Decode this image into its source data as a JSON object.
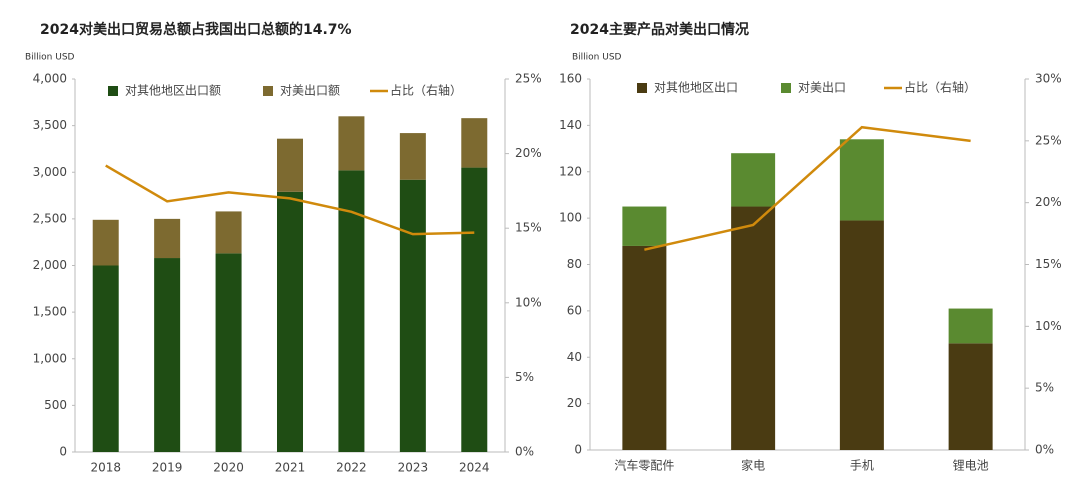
{
  "chart_data": [
    {
      "type": "bar",
      "stacked": true,
      "title": "2024对美出口贸易总额占我国出口总额的14.7%",
      "y_label": "Billion USD",
      "categories": [
        "2018",
        "2019",
        "2020",
        "2021",
        "2022",
        "2023",
        "2024"
      ],
      "series": [
        {
          "name": "对其他地区出口额",
          "color": "#1f4d14",
          "values": [
            2000,
            2080,
            2130,
            2790,
            3020,
            2920,
            3050
          ]
        },
        {
          "name": "对美出口额",
          "color": "#7d6a30",
          "values": [
            490,
            420,
            450,
            570,
            580,
            500,
            530
          ]
        },
        {
          "name": "占比（右轴）",
          "color": "#d08a0c",
          "type": "line",
          "axis": "y2",
          "values": [
            19.2,
            16.8,
            17.4,
            17.0,
            16.1,
            14.6,
            14.7
          ]
        }
      ],
      "ylim": [
        0,
        4000
      ],
      "yticks": [
        0,
        500,
        {
          "value": 1000,
          "label": "1,000"
        },
        {
          "value": 1500,
          "label": "1,500"
        },
        {
          "value": 2000,
          "label": "2,000"
        },
        {
          "value": 2500,
          "label": "2,500"
        },
        {
          "value": 3000,
          "label": "3,000"
        },
        {
          "value": 3500,
          "label": "3,500"
        },
        {
          "value": 4000,
          "label": "4,000"
        }
      ],
      "y2lim": [
        0,
        25
      ],
      "y2ticks": [
        {
          "value": 0,
          "label": "0%"
        },
        {
          "value": 5,
          "label": "5%"
        },
        {
          "value": 10,
          "label": "10%"
        },
        {
          "value": 15,
          "label": "15%"
        },
        {
          "value": 20,
          "label": "20%"
        },
        {
          "value": 25,
          "label": "25%"
        }
      ]
    },
    {
      "type": "bar",
      "stacked": true,
      "title": "2024主要产品对美出口情况",
      "y_label": "Billion USD",
      "categories": [
        "汽车零配件",
        "家电",
        "手机",
        "锂电池"
      ],
      "series": [
        {
          "name": "对其他地区出口",
          "color": "#4a3b12",
          "values": [
            88,
            105,
            99,
            46
          ]
        },
        {
          "name": "对美出口",
          "color": "#5a8a30",
          "values": [
            17,
            23,
            35,
            15
          ]
        },
        {
          "name": "占比（右轴）",
          "color": "#d08a0c",
          "type": "line",
          "axis": "y2",
          "values": [
            16.2,
            18.2,
            26.1,
            25.0
          ]
        }
      ],
      "ylim": [
        0,
        160
      ],
      "yticks": [
        0,
        20,
        40,
        60,
        80,
        100,
        120,
        140,
        160
      ],
      "y2lim": [
        0,
        30
      ],
      "y2ticks": [
        {
          "value": 0,
          "label": "0%"
        },
        {
          "value": 5,
          "label": "5%"
        },
        {
          "value": 10,
          "label": "10%"
        },
        {
          "value": 15,
          "label": "15%"
        },
        {
          "value": 20,
          "label": "20%"
        },
        {
          "value": 25,
          "label": "25%"
        },
        {
          "value": 30,
          "label": "30%"
        }
      ]
    }
  ]
}
